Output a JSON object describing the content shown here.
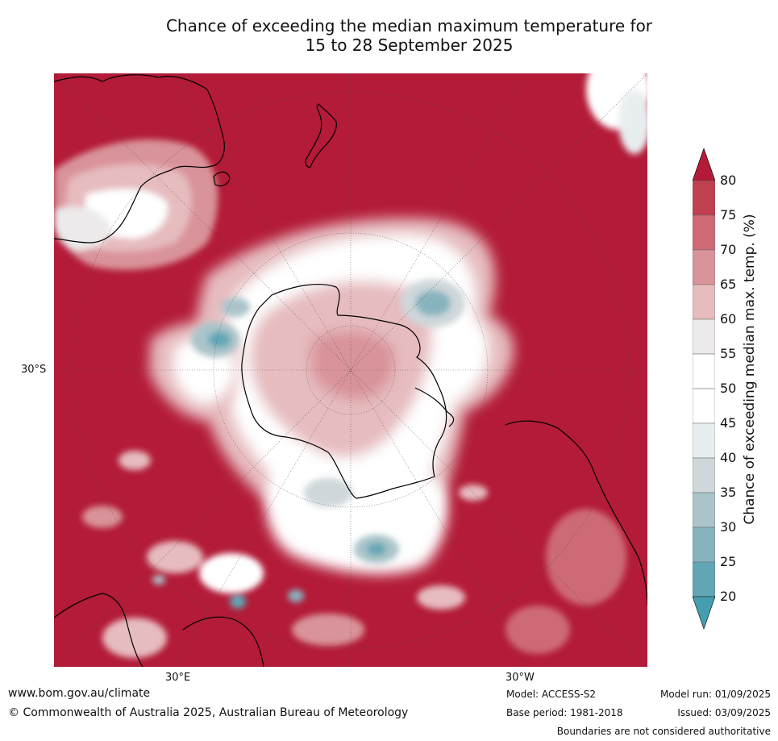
{
  "map": {
    "title_line1": "Chance of exceeding the median maximum temperature for",
    "title_line2": "15 to 28 September 2025",
    "lat_label": "30°S",
    "lon_labels": [
      "30°E",
      "30°W"
    ],
    "colors": {
      "ocean_high": "#b31b38",
      "near_median": "#ffffff",
      "coast": "#000000",
      "graticule": "#444444"
    }
  },
  "colorbar": {
    "title": "Chance of exceeding median max. temp. (%)",
    "ticks": [
      "80",
      "75",
      "70",
      "65",
      "60",
      "55",
      "50",
      "45",
      "40",
      "35",
      "30",
      "25",
      "20"
    ],
    "bands": [
      {
        "range": "≥80",
        "color": "#b31b38"
      },
      {
        "range": "75–80",
        "color": "#bf404f"
      },
      {
        "range": "70–75",
        "color": "#cd6a74"
      },
      {
        "range": "65–70",
        "color": "#d9939a"
      },
      {
        "range": "60–65",
        "color": "#e6bcbf"
      },
      {
        "range": "55–60",
        "color": "#eceaea"
      },
      {
        "range": "50–55",
        "color": "#ffffff"
      },
      {
        "range": "45–50",
        "color": "#ffffff"
      },
      {
        "range": "40–45",
        "color": "#e8edef"
      },
      {
        "range": "35–40",
        "color": "#cfd7da"
      },
      {
        "range": "30–35",
        "color": "#aac4ca"
      },
      {
        "range": "25–30",
        "color": "#87b3bf"
      },
      {
        "range": "20–25",
        "color": "#62a6b5"
      },
      {
        "range": "<20",
        "color": "#459eb0"
      }
    ]
  },
  "footer": {
    "website": "www.bom.gov.au/climate",
    "copyright": "© Commonwealth of Australia 2025, Australian Bureau of Meteorology",
    "model": "Model: ACCESS-S2",
    "base_period": "Base period: 1981-2018",
    "model_run": "Model run: 01/09/2025",
    "issued": "Issued: 03/09/2025",
    "disclaimer": "Boundaries are not considered authoritative"
  }
}
